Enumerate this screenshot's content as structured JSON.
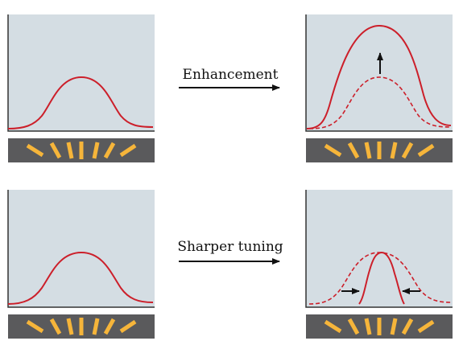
{
  "colors": {
    "panel_bg": "#d4dde3",
    "axis": "#333333",
    "curve": "#cc1f2a",
    "bar_strip": "#5a5a5c",
    "bar": "#f6b53a",
    "arrow": "#111111"
  },
  "rows": [
    {
      "transition_label": "Enhancement",
      "before": {
        "curve": "baseline tuning curve"
      },
      "after": {
        "curve": "increased response amplitude",
        "reference_curve": "dashed",
        "indicator": "up-arrow"
      }
    },
    {
      "transition_label": "Sharper tuning",
      "before": {
        "curve": "baseline tuning curve"
      },
      "after": {
        "curve": "narrower tuning width",
        "reference_curve": "dashed",
        "indicator": "inward-arrows"
      }
    }
  ],
  "stimulus_orientation_count": 7,
  "icons": {
    "transition_arrow": "right-arrow-icon",
    "enhance_indicator": "up-arrow-icon",
    "narrow_indicator": "inward-arrow-icon"
  }
}
